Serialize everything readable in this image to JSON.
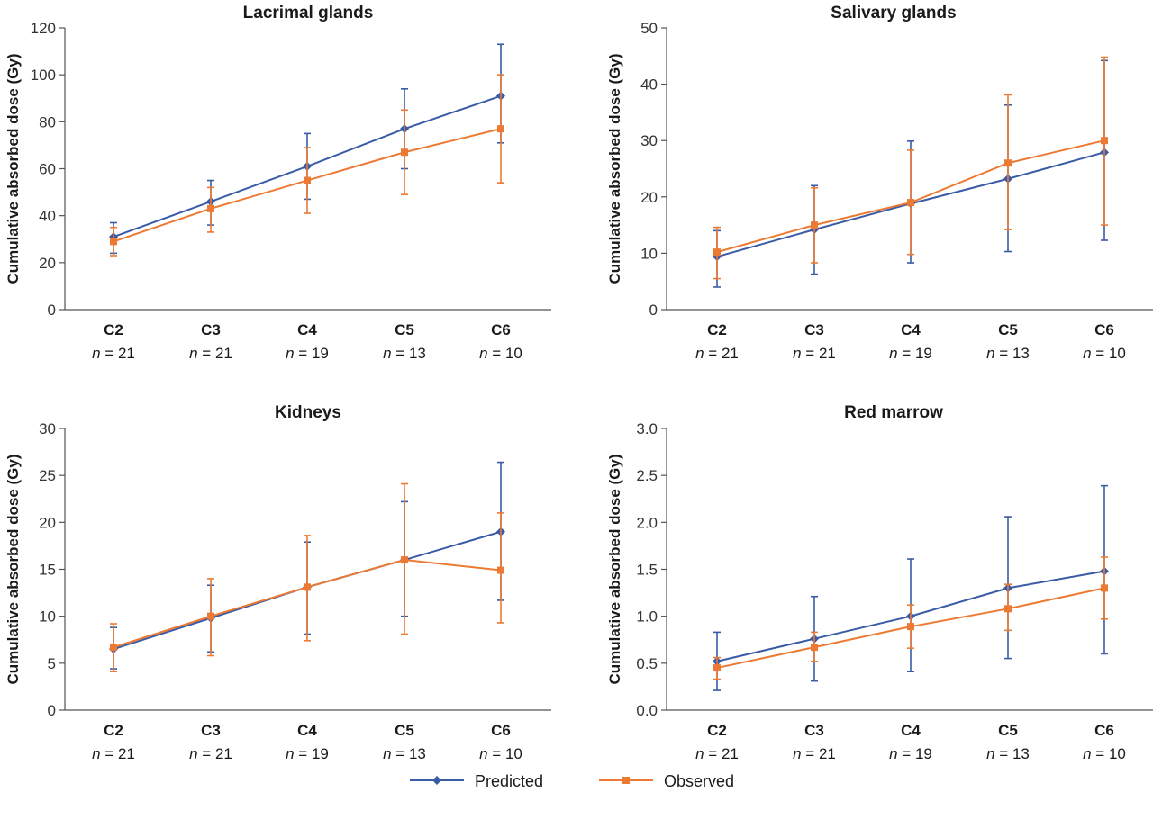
{
  "chart_data": [
    {
      "type": "line",
      "title": "Lacrimal glands",
      "ylabel": "Cumulative absorbed dose (Gy)",
      "categories": [
        "C2",
        "C3",
        "C4",
        "C5",
        "C6"
      ],
      "n_labels": [
        "n = 21",
        "n = 21",
        "n = 19",
        "n = 13",
        "n = 10"
      ],
      "ylim": [
        0,
        120
      ],
      "yticks": [
        0,
        20,
        40,
        60,
        80,
        100,
        120
      ],
      "tick_labels": [
        "0",
        "20",
        "40",
        "60",
        "80",
        "100",
        "120"
      ],
      "series": [
        {
          "name": "Predicted",
          "values": [
            31,
            46,
            61,
            77,
            91
          ],
          "err_low": [
            24,
            36,
            47,
            60,
            71
          ],
          "err_high": [
            37,
            55,
            75,
            94,
            113
          ]
        },
        {
          "name": "Observed",
          "values": [
            29,
            43,
            55,
            67,
            77
          ],
          "err_low": [
            23,
            33,
            41,
            49,
            54
          ],
          "err_high": [
            35,
            52,
            69,
            85,
            100
          ]
        }
      ]
    },
    {
      "type": "line",
      "title": "Salivary glands",
      "ylabel": "Cumulative absorbed dose (Gy)",
      "categories": [
        "C2",
        "C3",
        "C4",
        "C5",
        "C6"
      ],
      "n_labels": [
        "n = 21",
        "n = 21",
        "n = 19",
        "n = 13",
        "n = 10"
      ],
      "ylim": [
        0,
        50
      ],
      "yticks": [
        0,
        10,
        20,
        30,
        40,
        50
      ],
      "tick_labels": [
        "0",
        "10",
        "20",
        "30",
        "40",
        "50"
      ],
      "series": [
        {
          "name": "Predicted",
          "values": [
            9.4,
            14.2,
            18.8,
            23.2,
            27.9
          ],
          "err_low": [
            4.0,
            6.3,
            8.3,
            10.3,
            12.3
          ],
          "err_high": [
            14.0,
            22.0,
            29.9,
            36.3,
            44.2
          ]
        },
        {
          "name": "Observed",
          "values": [
            10.2,
            15.0,
            19.0,
            26.0,
            30.0
          ],
          "err_low": [
            5.5,
            8.3,
            9.8,
            14.2,
            15.0
          ],
          "err_high": [
            14.6,
            21.6,
            28.3,
            38.1,
            44.8
          ]
        }
      ]
    },
    {
      "type": "line",
      "title": "Kidneys",
      "ylabel": "Cumulative absorbed dose (Gy)",
      "categories": [
        "C2",
        "C3",
        "C4",
        "C5",
        "C6"
      ],
      "n_labels": [
        "n = 21",
        "n = 21",
        "n = 19",
        "n = 13",
        "n = 10"
      ],
      "ylim": [
        0,
        30
      ],
      "yticks": [
        0,
        5,
        10,
        15,
        20,
        25,
        30
      ],
      "tick_labels": [
        "0",
        "5",
        "10",
        "15",
        "20",
        "25",
        "30"
      ],
      "series": [
        {
          "name": "Predicted",
          "values": [
            6.5,
            9.8,
            13.1,
            16.0,
            19.0
          ],
          "err_low": [
            4.4,
            6.2,
            8.1,
            10.0,
            11.7
          ],
          "err_high": [
            8.8,
            13.3,
            17.9,
            22.2,
            26.4
          ]
        },
        {
          "name": "Observed",
          "values": [
            6.7,
            10.0,
            13.1,
            16.0,
            14.9
          ],
          "err_low": [
            4.1,
            5.8,
            7.4,
            8.1,
            9.3
          ],
          "err_high": [
            9.2,
            14.0,
            18.6,
            24.1,
            21.0
          ]
        }
      ]
    },
    {
      "type": "line",
      "title": "Red marrow",
      "ylabel": "Cumulative absorbed dose (Gy)",
      "categories": [
        "C2",
        "C3",
        "C4",
        "C5",
        "C6"
      ],
      "n_labels": [
        "n = 21",
        "n = 21",
        "n = 19",
        "n = 13",
        "n = 10"
      ],
      "ylim": [
        0,
        3.0
      ],
      "yticks": [
        0,
        0.5,
        1.0,
        1.5,
        2.0,
        2.5,
        3.0
      ],
      "tick_labels": [
        "0.0",
        "0.5",
        "1.0",
        "1.5",
        "2.0",
        "2.5",
        "3.0"
      ],
      "series": [
        {
          "name": "Predicted",
          "values": [
            0.52,
            0.76,
            1.0,
            1.3,
            1.48
          ],
          "err_low": [
            0.21,
            0.31,
            0.41,
            0.55,
            0.6
          ],
          "err_high": [
            0.83,
            1.21,
            1.61,
            2.06,
            2.39
          ]
        },
        {
          "name": "Observed",
          "values": [
            0.45,
            0.67,
            0.89,
            1.08,
            1.3
          ],
          "err_low": [
            0.33,
            0.52,
            0.66,
            0.85,
            0.97
          ],
          "err_high": [
            0.56,
            0.83,
            1.12,
            1.34,
            1.63
          ]
        }
      ]
    }
  ],
  "legend": {
    "items": [
      {
        "label": "Predicted",
        "color": "#3a5ba5",
        "marker": "diamond"
      },
      {
        "label": "Observed",
        "color": "#ed7a33",
        "marker": "square"
      }
    ]
  }
}
